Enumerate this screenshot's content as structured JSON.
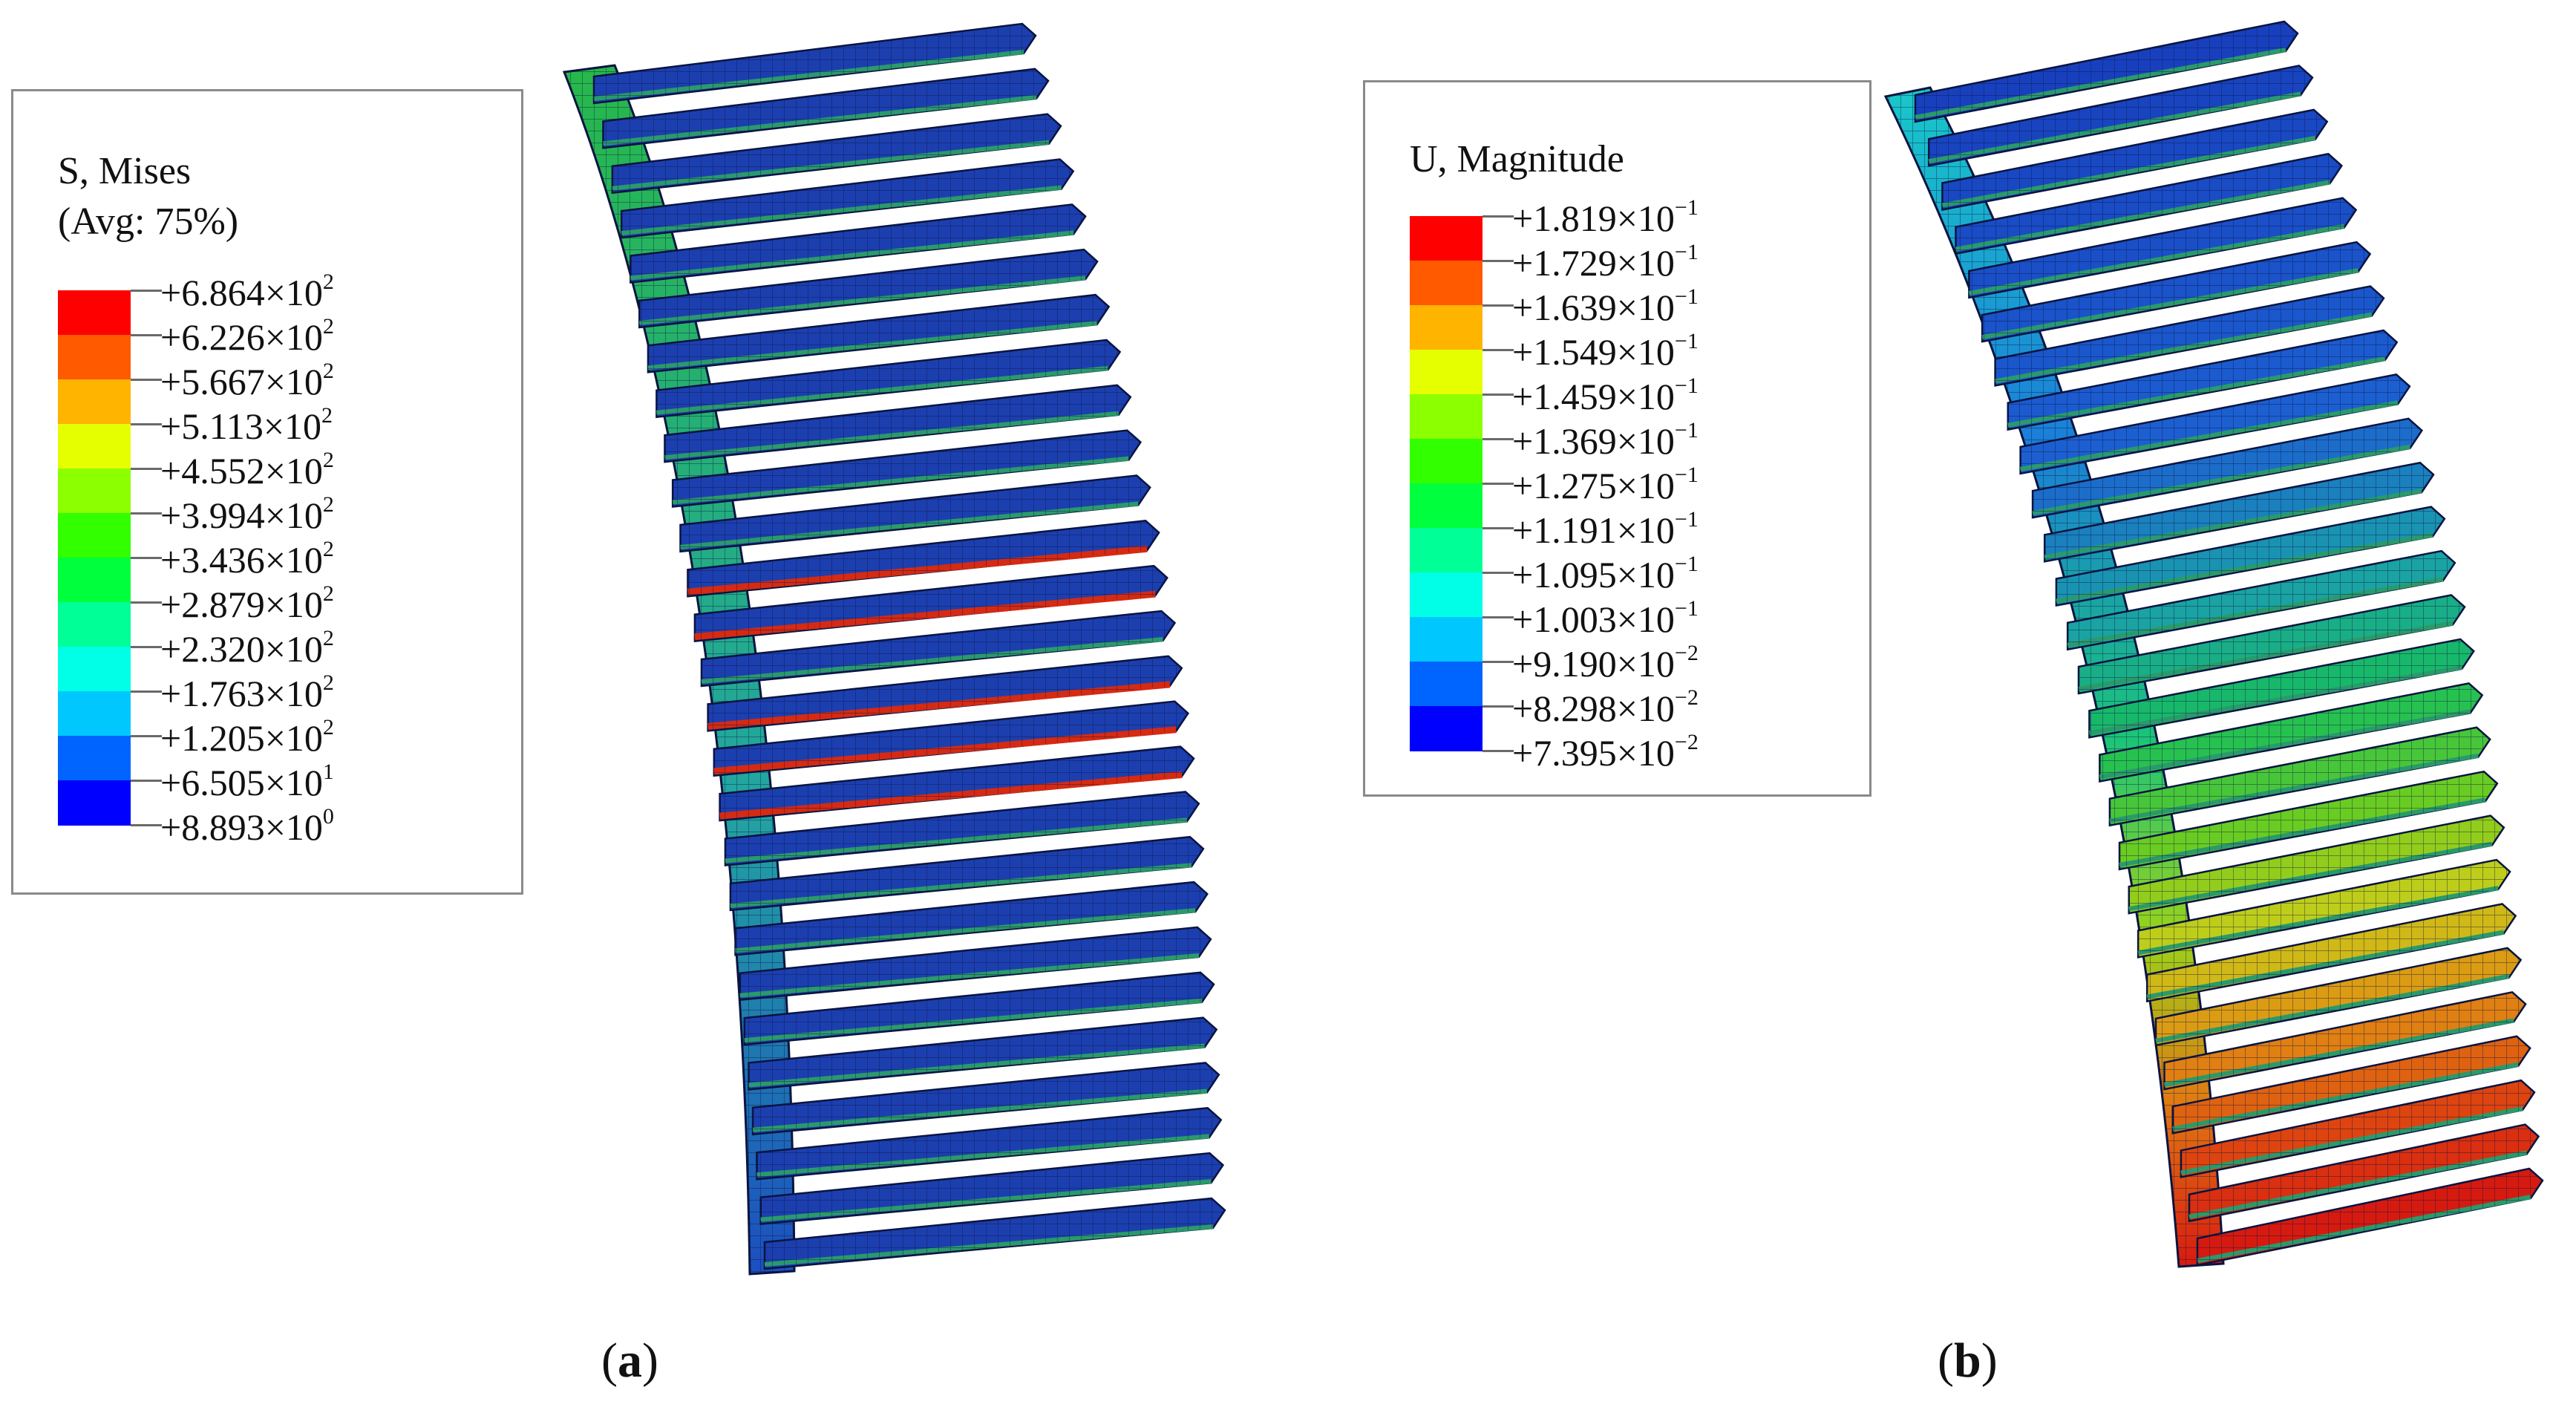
{
  "panel_a": {
    "legend": {
      "title_line1": "S, Mises",
      "title_line2": "(Avg: 75%)",
      "levels": [
        {
          "mant": "+6.864×10",
          "exp": "2"
        },
        {
          "mant": "+6.226×10",
          "exp": "2"
        },
        {
          "mant": "+5.667×10",
          "exp": "2"
        },
        {
          "mant": "+5.113×10",
          "exp": "2"
        },
        {
          "mant": "+4.552×10",
          "exp": "2"
        },
        {
          "mant": "+3.994×10",
          "exp": "2"
        },
        {
          "mant": "+3.436×10",
          "exp": "2"
        },
        {
          "mant": "+2.879×10",
          "exp": "2"
        },
        {
          "mant": "+2.320×10",
          "exp": "2"
        },
        {
          "mant": "+1.763×10",
          "exp": "2"
        },
        {
          "mant": "+1.205×10",
          "exp": "2"
        },
        {
          "mant": "+6.505×10",
          "exp": "1"
        },
        {
          "mant": "+8.893×10",
          "exp": "0"
        }
      ]
    },
    "label_open": "(",
    "label_letter": "a",
    "label_close": ")"
  },
  "panel_b": {
    "legend": {
      "title": "U, Magnitude",
      "levels": [
        {
          "mant": "+1.819×10",
          "exp": "−1"
        },
        {
          "mant": "+1.729×10",
          "exp": "−1"
        },
        {
          "mant": "+1.639×10",
          "exp": "−1"
        },
        {
          "mant": "+1.549×10",
          "exp": "−1"
        },
        {
          "mant": "+1.459×10",
          "exp": "−1"
        },
        {
          "mant": "+1.369×10",
          "exp": "−1"
        },
        {
          "mant": "+1.275×10",
          "exp": "−1"
        },
        {
          "mant": "+1.191×10",
          "exp": "−1"
        },
        {
          "mant": "+1.095×10",
          "exp": "−1"
        },
        {
          "mant": "+1.003×10",
          "exp": "−1"
        },
        {
          "mant": "+9.190×10",
          "exp": "−2"
        },
        {
          "mant": "+8.298×10",
          "exp": "−2"
        },
        {
          "mant": "+7.395×10",
          "exp": "−2"
        }
      ]
    },
    "label_open": "(",
    "label_letter": "b",
    "label_close": ")"
  },
  "colors": {
    "contour_scale": [
      "#ff0000",
      "#ff5a00",
      "#ffb400",
      "#e6ff00",
      "#8cff00",
      "#32ff00",
      "#00ff3c",
      "#00ff96",
      "#00ffe6",
      "#00c8ff",
      "#0064ff",
      "#0000ff"
    ],
    "model_a_base": "#1c3fb0",
    "model_a_flank": "#1faa72",
    "model_a_hot": "#d62a12",
    "legend_border": "#8a8a8a"
  }
}
